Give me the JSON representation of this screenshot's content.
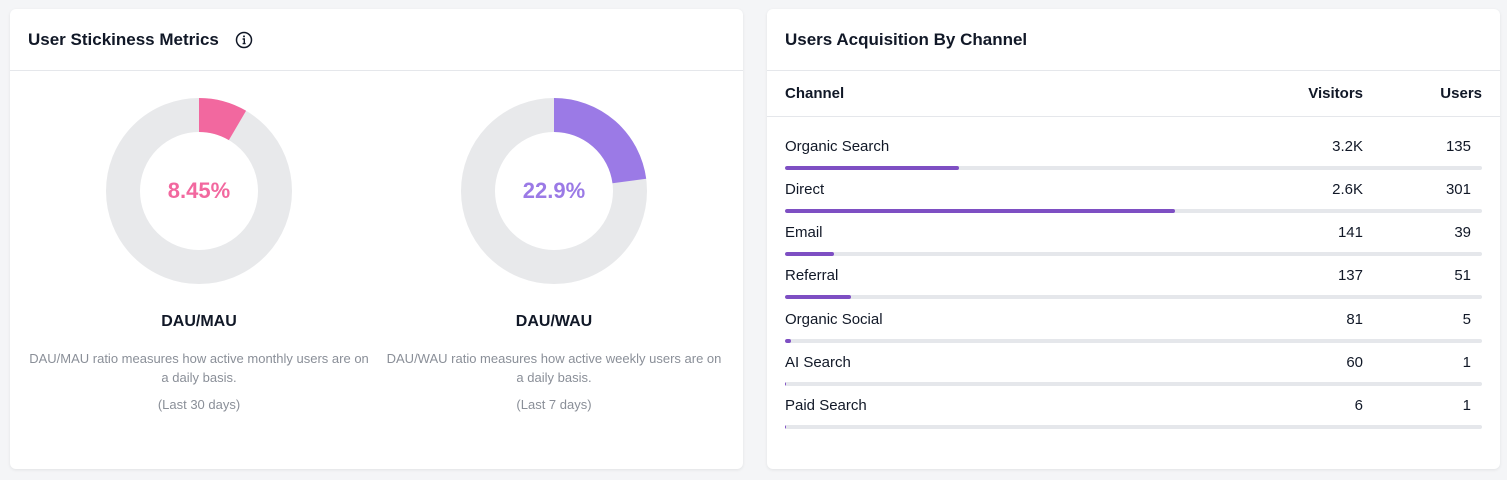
{
  "stickiness": {
    "title": "User Stickiness Metrics",
    "info_icon": "info-icon",
    "gauges": [
      {
        "value_label": "8.45%",
        "fraction": 0.0845,
        "label": "DAU/MAU",
        "description": "DAU/MAU ratio measures how active monthly users are on a daily basis.",
        "period": "(Last 30 days)",
        "color": "#f2689f",
        "track_color": "#e8e9eb"
      },
      {
        "value_label": "22.9%",
        "fraction": 0.229,
        "label": "DAU/WAU",
        "description": "DAU/WAU ratio measures how active weekly users are on a daily basis.",
        "period": "(Last 7 days)",
        "color": "#9b7ae6",
        "track_color": "#e8e9eb"
      }
    ]
  },
  "acquisition": {
    "title": "Users Acquisition By Channel",
    "columns": {
      "channel": "Channel",
      "visitors": "Visitors",
      "users": "Users"
    },
    "bar_color": "#7e4fc3",
    "rows": [
      {
        "channel": "Organic Search",
        "visitors": "3.2K",
        "users": "135",
        "bar_fraction": 0.25
      },
      {
        "channel": "Direct",
        "visitors": "2.6K",
        "users": "301",
        "bar_fraction": 0.56
      },
      {
        "channel": "Email",
        "visitors": "141",
        "users": "39",
        "bar_fraction": 0.07
      },
      {
        "channel": "Referral",
        "visitors": "137",
        "users": "51",
        "bar_fraction": 0.095
      },
      {
        "channel": "Organic Social",
        "visitors": "81",
        "users": "5",
        "bar_fraction": 0.008
      },
      {
        "channel": "AI Search",
        "visitors": "60",
        "users": "1",
        "bar_fraction": 0.002
      },
      {
        "channel": "Paid Search",
        "visitors": "6",
        "users": "1",
        "bar_fraction": 0.002
      }
    ]
  }
}
